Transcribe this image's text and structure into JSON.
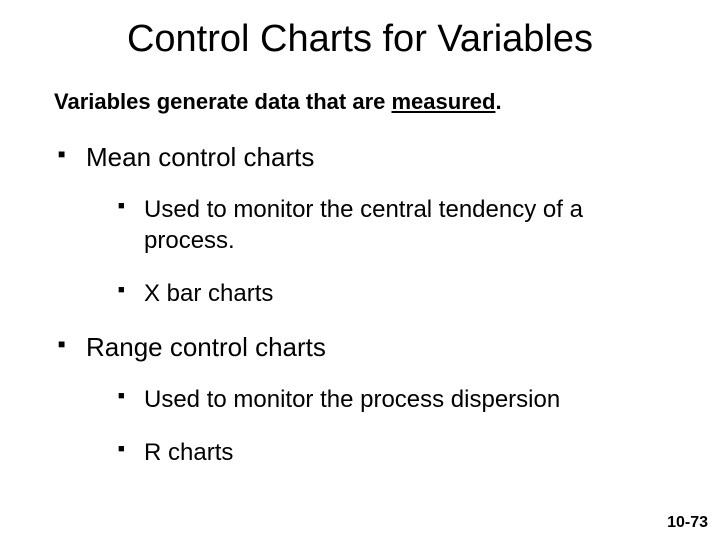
{
  "title": "Control Charts for Variables",
  "subtitle_prefix": "Variables generate data that are ",
  "subtitle_underlined": "measured",
  "subtitle_suffix": ".",
  "bullets": {
    "item1": {
      "label": "Mean control charts",
      "sub1": "Used to monitor the central tendency of a process.",
      "sub2": "X bar charts"
    },
    "item2": {
      "label": "Range control charts",
      "sub1": "Used to monitor the process dispersion",
      "sub2": "R charts"
    }
  },
  "page_number": "10-73",
  "colors": {
    "background": "#ffffff",
    "text": "#000000"
  },
  "fonts": {
    "title_size": 38,
    "subtitle_size": 22,
    "level1_size": 26,
    "level2_size": 24,
    "page_number_size": 16
  }
}
